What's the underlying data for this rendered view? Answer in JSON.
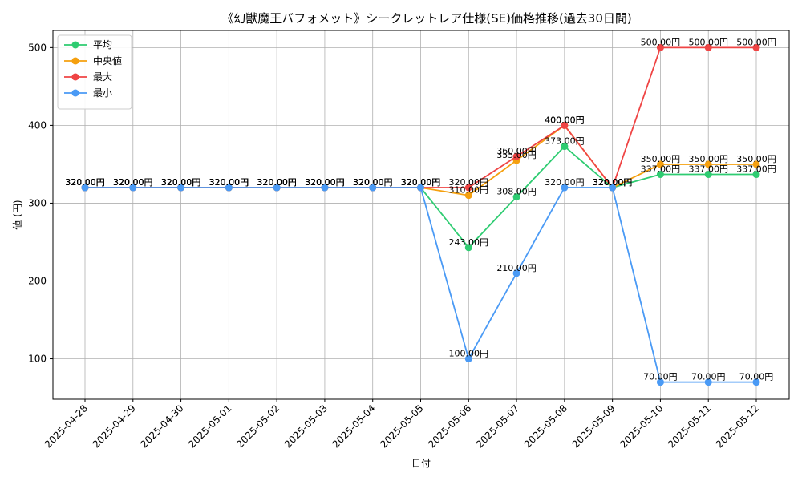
{
  "chart_data": {
    "type": "line",
    "title": "《幻獣魔王バフォメット》シークレットレア仕様(SE)価格推移(過去30日間)",
    "xlabel": "日付",
    "ylabel": "値 (円)",
    "ylim": [
      48,
      522
    ],
    "yticks": [
      100,
      200,
      300,
      400,
      500
    ],
    "grid": true,
    "legend_position": "top-left",
    "categories": [
      "2025-04-28",
      "2025-04-29",
      "2025-04-30",
      "2025-05-01",
      "2025-05-02",
      "2025-05-03",
      "2025-05-04",
      "2025-05-05",
      "2025-05-06",
      "2025-05-07",
      "2025-05-08",
      "2025-05-09",
      "2025-05-10",
      "2025-05-11",
      "2025-05-12"
    ],
    "series": [
      {
        "name": "平均",
        "color": "#2ecc71",
        "values": [
          320,
          320,
          320,
          320,
          320,
          320,
          320,
          320,
          243,
          308,
          373,
          320,
          337,
          337,
          337
        ],
        "labels": [
          "320.00円",
          "320.00円",
          "320.00円",
          "320.00円",
          "320.00円",
          "320.00円",
          "320.00円",
          "320.00円",
          "243.00円",
          "308.00円",
          "373.00円",
          "320.00円",
          "337.00円",
          "337.00円",
          "337.00円"
        ]
      },
      {
        "name": "中央値",
        "color": "#f5a00f",
        "values": [
          320,
          320,
          320,
          320,
          320,
          320,
          320,
          320,
          310,
          355,
          400,
          320,
          350,
          350,
          350
        ],
        "labels": [
          "320.00円",
          "320.00円",
          "320.00円",
          "320.00円",
          "320.00円",
          "320.00円",
          "320.00円",
          "320.00円",
          "310.00円",
          "355.00円",
          "400.00円",
          "320.00円",
          "350.00円",
          "350.00円",
          "350.00円"
        ]
      },
      {
        "name": "最大",
        "color": "#ef4444",
        "values": [
          320,
          320,
          320,
          320,
          320,
          320,
          320,
          320,
          320,
          360,
          400,
          320,
          500,
          500,
          500
        ],
        "labels": [
          "320.00円",
          "320.00円",
          "320.00円",
          "320.00円",
          "320.00円",
          "320.00円",
          "320.00円",
          "320.00円",
          "320.00円",
          "360.00円",
          "400.00円",
          "320.00円",
          "500.00円",
          "500.00円",
          "500.00円"
        ]
      },
      {
        "name": "最小",
        "color": "#4a9af5",
        "values": [
          320,
          320,
          320,
          320,
          320,
          320,
          320,
          320,
          100,
          210,
          320,
          320,
          70,
          70,
          70
        ],
        "labels": [
          "320.00円",
          "320.00円",
          "320.00円",
          "320.00円",
          "320.00円",
          "320.00円",
          "320.00円",
          "320.00円",
          "100.00円",
          "210.00円",
          "320.00円",
          "320.00円",
          "70.00円",
          "70.00円",
          "70.00円"
        ]
      }
    ]
  }
}
